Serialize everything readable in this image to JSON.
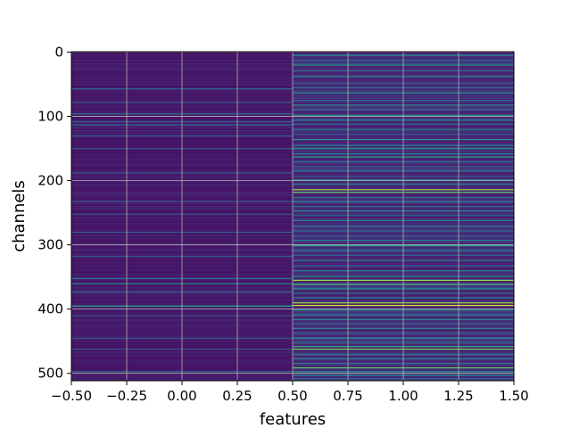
{
  "chart_data": {
    "type": "heatmap",
    "title": "",
    "xlabel": "features",
    "ylabel": "channels",
    "xlim": [
      -0.5,
      1.5
    ],
    "ylim": [
      511.5,
      -0.5
    ],
    "grid": true,
    "colormap": "viridis",
    "value_range": [
      0,
      1
    ],
    "xticks": [
      "−0.50",
      "−0.25",
      "0.00",
      "0.25",
      "0.50",
      "0.75",
      "1.00",
      "1.25",
      "1.50"
    ],
    "xtick_values": [
      -0.5,
      -0.25,
      0,
      0.25,
      0.5,
      0.75,
      1.0,
      1.25,
      1.5
    ],
    "yticks": [
      "0",
      "100",
      "200",
      "300",
      "400",
      "500"
    ],
    "ytick_values": [
      0,
      100,
      200,
      300,
      400,
      500
    ],
    "n_rows": 512,
    "columns": [
      {
        "x": 0,
        "base_value": 0.07,
        "bright_rows": [
          [
            57,
            0.35
          ],
          [
            78,
            0.3
          ],
          [
            96,
            0.4
          ],
          [
            108,
            0.3
          ],
          [
            113,
            0.35
          ],
          [
            130,
            0.3
          ],
          [
            150,
            0.28
          ],
          [
            188,
            0.3
          ],
          [
            232,
            0.3
          ],
          [
            252,
            0.28
          ],
          [
            280,
            0.3
          ],
          [
            318,
            0.3
          ],
          [
            352,
            0.4
          ],
          [
            360,
            0.45
          ],
          [
            373,
            0.35
          ],
          [
            395,
            0.6
          ],
          [
            410,
            0.3
          ],
          [
            445,
            0.3
          ],
          [
            462,
            0.28
          ],
          [
            497,
            0.35
          ]
        ]
      },
      {
        "x": 1,
        "base_value": 0.12,
        "bright_rows": [
          [
            5,
            0.45
          ],
          [
            12,
            0.3
          ],
          [
            20,
            0.55
          ],
          [
            29,
            0.35
          ],
          [
            38,
            0.45
          ],
          [
            48,
            0.3
          ],
          [
            55,
            0.4
          ],
          [
            63,
            0.5
          ],
          [
            75,
            0.35
          ],
          [
            82,
            0.45
          ],
          [
            90,
            0.35
          ],
          [
            98,
            0.55
          ],
          [
            106,
            0.45
          ],
          [
            112,
            0.35
          ],
          [
            120,
            0.45
          ],
          [
            128,
            0.3
          ],
          [
            136,
            0.5
          ],
          [
            145,
            0.4
          ],
          [
            150,
            0.55
          ],
          [
            158,
            0.45
          ],
          [
            163,
            0.6
          ],
          [
            170,
            0.4
          ],
          [
            178,
            0.35
          ],
          [
            185,
            0.45
          ],
          [
            193,
            0.3
          ],
          [
            199,
            0.55
          ],
          [
            205,
            0.45
          ],
          [
            214,
            0.85
          ],
          [
            218,
            0.75
          ],
          [
            226,
            0.4
          ],
          [
            233,
            0.45
          ],
          [
            240,
            0.35
          ],
          [
            247,
            0.5
          ],
          [
            254,
            0.3
          ],
          [
            262,
            0.45
          ],
          [
            270,
            0.35
          ],
          [
            278,
            0.4
          ],
          [
            286,
            0.3
          ],
          [
            293,
            0.45
          ],
          [
            301,
            0.6
          ],
          [
            309,
            0.4
          ],
          [
            316,
            0.35
          ],
          [
            324,
            0.45
          ],
          [
            332,
            0.3
          ],
          [
            340,
            0.45
          ],
          [
            349,
            0.55
          ],
          [
            355,
            0.85
          ],
          [
            361,
            0.7
          ],
          [
            368,
            0.5
          ],
          [
            375,
            0.4
          ],
          [
            382,
            0.45
          ],
          [
            390,
            0.85
          ],
          [
            394,
            0.95
          ],
          [
            401,
            0.5
          ],
          [
            409,
            0.4
          ],
          [
            416,
            0.45
          ],
          [
            423,
            0.35
          ],
          [
            430,
            0.45
          ],
          [
            438,
            0.3
          ],
          [
            445,
            0.45
          ],
          [
            452,
            0.35
          ],
          [
            458,
            0.65
          ],
          [
            462,
            0.8
          ],
          [
            470,
            0.4
          ],
          [
            477,
            0.45
          ],
          [
            484,
            0.35
          ],
          [
            491,
            0.75
          ],
          [
            497,
            0.55
          ],
          [
            503,
            0.45
          ],
          [
            508,
            0.3
          ]
        ]
      }
    ]
  }
}
